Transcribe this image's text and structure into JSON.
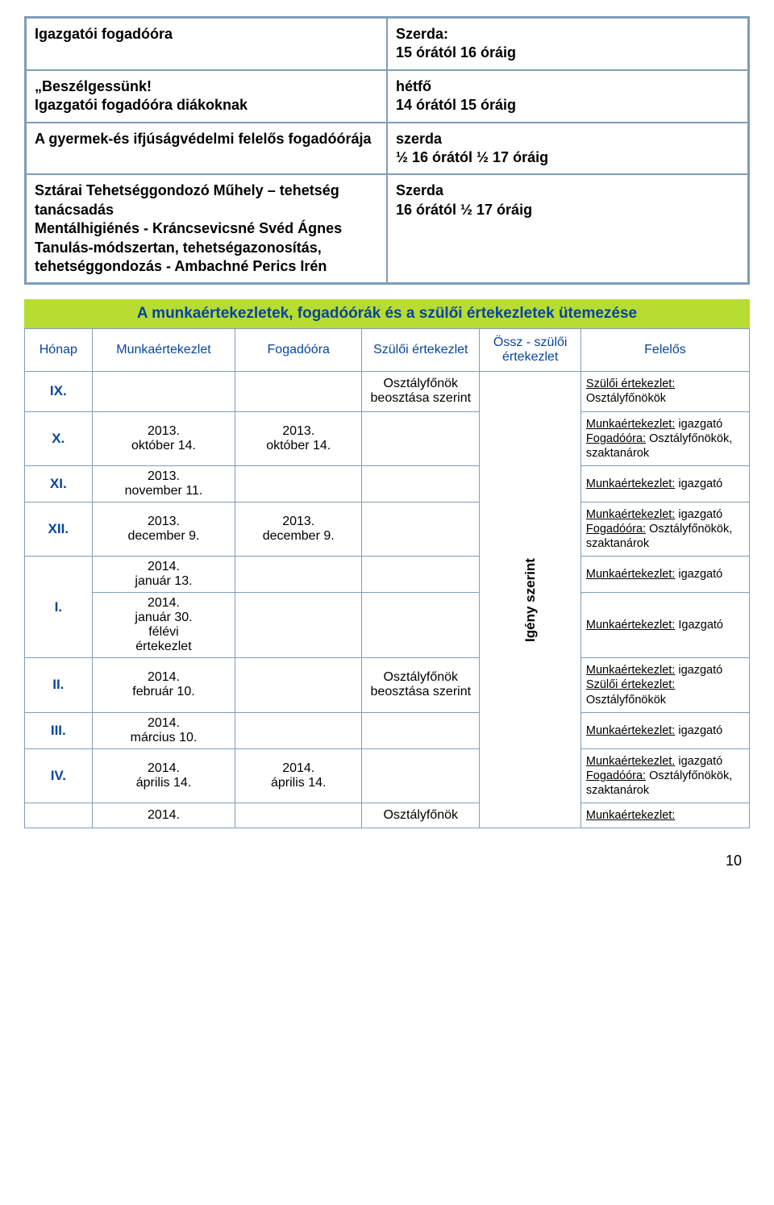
{
  "table1": {
    "rows": [
      {
        "left": "Igazgatói fogadóóra",
        "right": "Szerda:\n15 órától 16 óráig"
      },
      {
        "left": "„Beszélgessünk!\nIgazgatói fogadóóra diákoknak",
        "right": "hétfő\n14 órától 15 óráig"
      },
      {
        "left": "A gyermek-és ifjúságvédelmi felelős fogadóórája",
        "right": "szerda\n½ 16 órától ½ 17 óráig"
      },
      {
        "left": "Sztárai Tehetséggondozó Műhely – tehetség tanácsadás\nMentálhigiénés - Kráncsevicsné Svéd Ágnes\nTanulás-módszertan, tehetségazonosítás, tehetséggondozás - Ambachné Perics Irén",
        "right": "Szerda\n16 órától ½ 17 óráig"
      }
    ]
  },
  "section_title": "A munkaértekezletek, fogadóórák és a szülői értekezletek ütemezése",
  "table2": {
    "headers": {
      "honap": "Hónap",
      "munka": "Munkaértekezlet",
      "fogado": "Fogadóóra",
      "szuloi": "Szülői értekezlet",
      "ossz": "Össz - szülői értekezlet",
      "felelos": "Felelős"
    },
    "ossz_label": "Igény szerint",
    "rows": [
      {
        "month": "IX.",
        "munka": "",
        "fogado": "",
        "szuloi": "Osztályfőnök beosztása szerint",
        "felelos_parts": [
          {
            "u": true,
            "t": "Szülői értekezlet:"
          },
          {
            "t": " Osztályfőnökök"
          }
        ]
      },
      {
        "month": "X.",
        "munka": "2013.\noktóber 14.",
        "fogado": "2013.\noktóber 14.",
        "szuloi": "",
        "felelos_parts": [
          {
            "u": true,
            "t": "Munkaértekezlet:"
          },
          {
            "t": " igazgató "
          },
          {
            "u": true,
            "t": "Fogadóóra:"
          },
          {
            "t": " Osztályfőnökök, szaktanárok"
          }
        ]
      },
      {
        "month": "XI.",
        "munka": "2013.\nnovember 11.",
        "fogado": "",
        "szuloi": "",
        "felelos_parts": [
          {
            "u": true,
            "t": "Munkaértekezlet:"
          },
          {
            "t": " igazgató"
          }
        ]
      },
      {
        "month": "XII.",
        "munka": "2013.\ndecember 9.",
        "fogado": "2013.\ndecember 9.",
        "szuloi": "",
        "felelos_parts": [
          {
            "u": true,
            "t": "Munkaértekezlet:"
          },
          {
            "t": " igazgató "
          },
          {
            "u": true,
            "t": "Fogadóóra:"
          },
          {
            "t": " Osztályfőnökök, szaktanárok"
          }
        ]
      },
      {
        "month": "I.",
        "rowspan": 2,
        "munka": "2014.\njanuár 13.",
        "fogado": "",
        "szuloi": "",
        "felelos_parts": [
          {
            "u": true,
            "t": "Munkaértekezlet:"
          },
          {
            "t": " igazgató"
          }
        ]
      },
      {
        "month": null,
        "munka": "2014.\njanuár 30.\nfélévi\nértekezlet",
        "fogado": "",
        "szuloi": "",
        "felelos_parts": [
          {
            "u": true,
            "t": "Munkaértekezlet:"
          },
          {
            "t": " Igazgató"
          }
        ]
      },
      {
        "month": "II.",
        "munka": "2014.\nfebruár 10.",
        "fogado": "",
        "szuloi": "Osztályfőnök beosztása szerint",
        "felelos_parts": [
          {
            "u": true,
            "t": "Munkaértekezlet:"
          },
          {
            "t": " igazgató "
          },
          {
            "u": true,
            "t": "Szülői értekezlet:"
          },
          {
            "t": " Osztályfőnökök"
          }
        ]
      },
      {
        "month": "III.",
        "munka": "2014.\nmárcius 10.",
        "fogado": "",
        "szuloi": "",
        "felelos_parts": [
          {
            "u": true,
            "t": "Munkaértekezlet:"
          },
          {
            "t": " igazgató"
          }
        ]
      },
      {
        "month": "IV.",
        "munka": "2014.\náprilis 14.",
        "fogado": "2014.\náprilis 14.",
        "szuloi": "",
        "felelos_parts": [
          {
            "u": true,
            "t": "Munkaértekezlet."
          },
          {
            "t": " igazgató "
          },
          {
            "u": true,
            "t": "Fogadóóra:"
          },
          {
            "t": " Osztályfőnökök, szaktanárok"
          }
        ]
      },
      {
        "month": "",
        "munka": "2014.",
        "fogado": "",
        "szuloi": "Osztályfőnök",
        "felelos_parts": [
          {
            "u": true,
            "t": "Munkaértekezlet:"
          }
        ]
      }
    ]
  },
  "page_number": "10"
}
